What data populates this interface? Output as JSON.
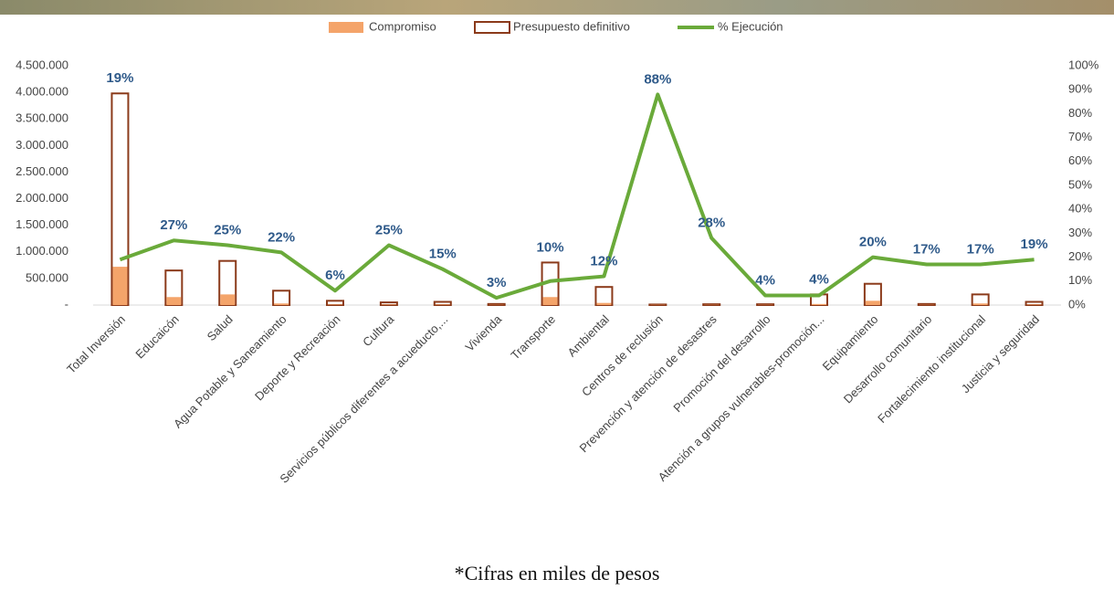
{
  "chart_data": {
    "type": "bar",
    "categories": [
      "Total Inversión",
      "Educaicón",
      "Salud",
      "Agua Potable y Saneamiento",
      "Deporte y Recreación",
      "Cultura",
      "Servicios públicos diferentes a acueducto,...",
      "Vivienda",
      "Transporte",
      "Ambiental",
      "Centros de reclusión",
      "Prevención y atención de desastres",
      "Promoción del desarrollo",
      "Atención a grupos vulnerables-promoción...",
      "Equipamiento",
      "Desarrollo comunitario",
      "Fortalecimiento institucional",
      "Justicia y seguridad"
    ],
    "series": [
      {
        "name": "Compromiso",
        "color": "#f4a46a",
        "values": [
          720000,
          150000,
          200000,
          30000,
          10000,
          10000,
          10000,
          5000,
          150000,
          40000,
          5000,
          5000,
          5000,
          20000,
          80000,
          5000,
          30000,
          10000
        ]
      },
      {
        "name": "Presupuesto definitivo",
        "color": "#8b3a1a",
        "values": [
          3980000,
          650000,
          830000,
          270000,
          80000,
          50000,
          60000,
          20000,
          800000,
          340000,
          10000,
          15000,
          15000,
          200000,
          400000,
          20000,
          200000,
          60000
        ]
      },
      {
        "name": "% Ejecución",
        "color": "#6aaa3a",
        "axis": "y2",
        "values": [
          19,
          27,
          25,
          22,
          6,
          25,
          15,
          3,
          10,
          12,
          88,
          28,
          4,
          4,
          20,
          17,
          17,
          19
        ],
        "value_labels": [
          "19%",
          "27%",
          "25%",
          "22%",
          "6%",
          "25%",
          "15%",
          "3%",
          "10%",
          "12%",
          "88%",
          "28%",
          "4%",
          "4%",
          "20%",
          "17%",
          "17%",
          "19%"
        ]
      }
    ],
    "ylim": [
      0,
      4500000
    ],
    "yticks": [
      {
        "value": 0,
        "label": "-"
      },
      {
        "value": 500000,
        "label": "500.000"
      },
      {
        "value": 1000000,
        "label": "1.000.000"
      },
      {
        "value": 1500000,
        "label": "1.500.000"
      },
      {
        "value": 2000000,
        "label": "2.000.000"
      },
      {
        "value": 2500000,
        "label": "2.500.000"
      },
      {
        "value": 3000000,
        "label": "3.000.000"
      },
      {
        "value": 3500000,
        "label": "3.500.000"
      },
      {
        "value": 4000000,
        "label": "4.000.000"
      },
      {
        "value": 4500000,
        "label": "4.500.000"
      }
    ],
    "y2lim": [
      0,
      100
    ],
    "y2ticks": [
      {
        "value": 0,
        "label": "0%"
      },
      {
        "value": 10,
        "label": "10%"
      },
      {
        "value": 20,
        "label": "20%"
      },
      {
        "value": 30,
        "label": "30%"
      },
      {
        "value": 40,
        "label": "40%"
      },
      {
        "value": 50,
        "label": "50%"
      },
      {
        "value": 60,
        "label": "60%"
      },
      {
        "value": 70,
        "label": "70%"
      },
      {
        "value": 80,
        "label": "80%"
      },
      {
        "value": 90,
        "label": "90%"
      },
      {
        "value": 100,
        "label": "100%"
      }
    ],
    "legend": "top",
    "footnote": "*Cifras en miles de pesos"
  }
}
